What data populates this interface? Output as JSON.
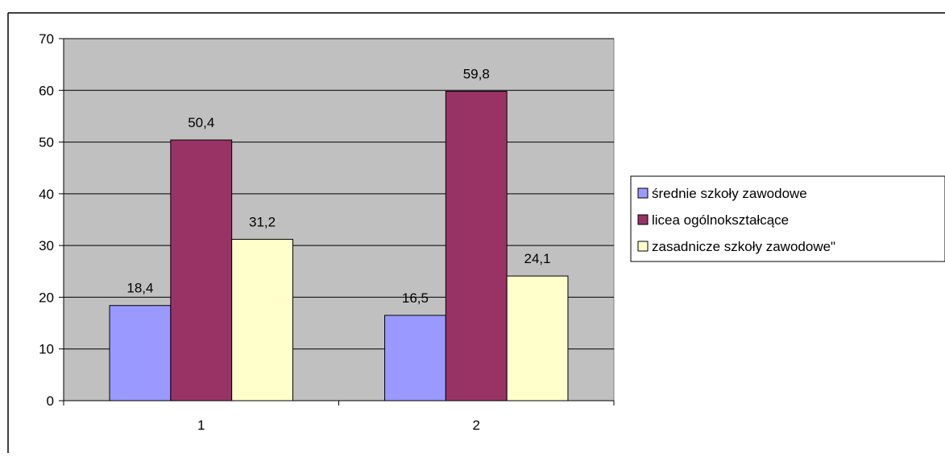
{
  "chart_data": {
    "type": "bar",
    "categories": [
      "1",
      "2"
    ],
    "series": [
      {
        "name": "średnie szkoły zawodowe",
        "values": [
          18.4,
          16.5
        ],
        "labels": [
          "18,4",
          "16,5"
        ],
        "color": "#9999ff"
      },
      {
        "name": "licea ogólnokształcące",
        "values": [
          50.4,
          59.8
        ],
        "labels": [
          "50,4",
          "59,8"
        ],
        "color": "#993366"
      },
      {
        "name": "zasadnicze szkoły zawodowe\"",
        "values": [
          31.2,
          24.1
        ],
        "labels": [
          "31,2",
          "24,1"
        ],
        "color": "#ffffcc"
      }
    ],
    "yticks": [
      "0",
      "10",
      "20",
      "30",
      "40",
      "50",
      "60",
      "70"
    ],
    "ylim": [
      0,
      70
    ],
    "grid": true,
    "legend_position": "right",
    "plot_background": "#c0c0c0"
  }
}
